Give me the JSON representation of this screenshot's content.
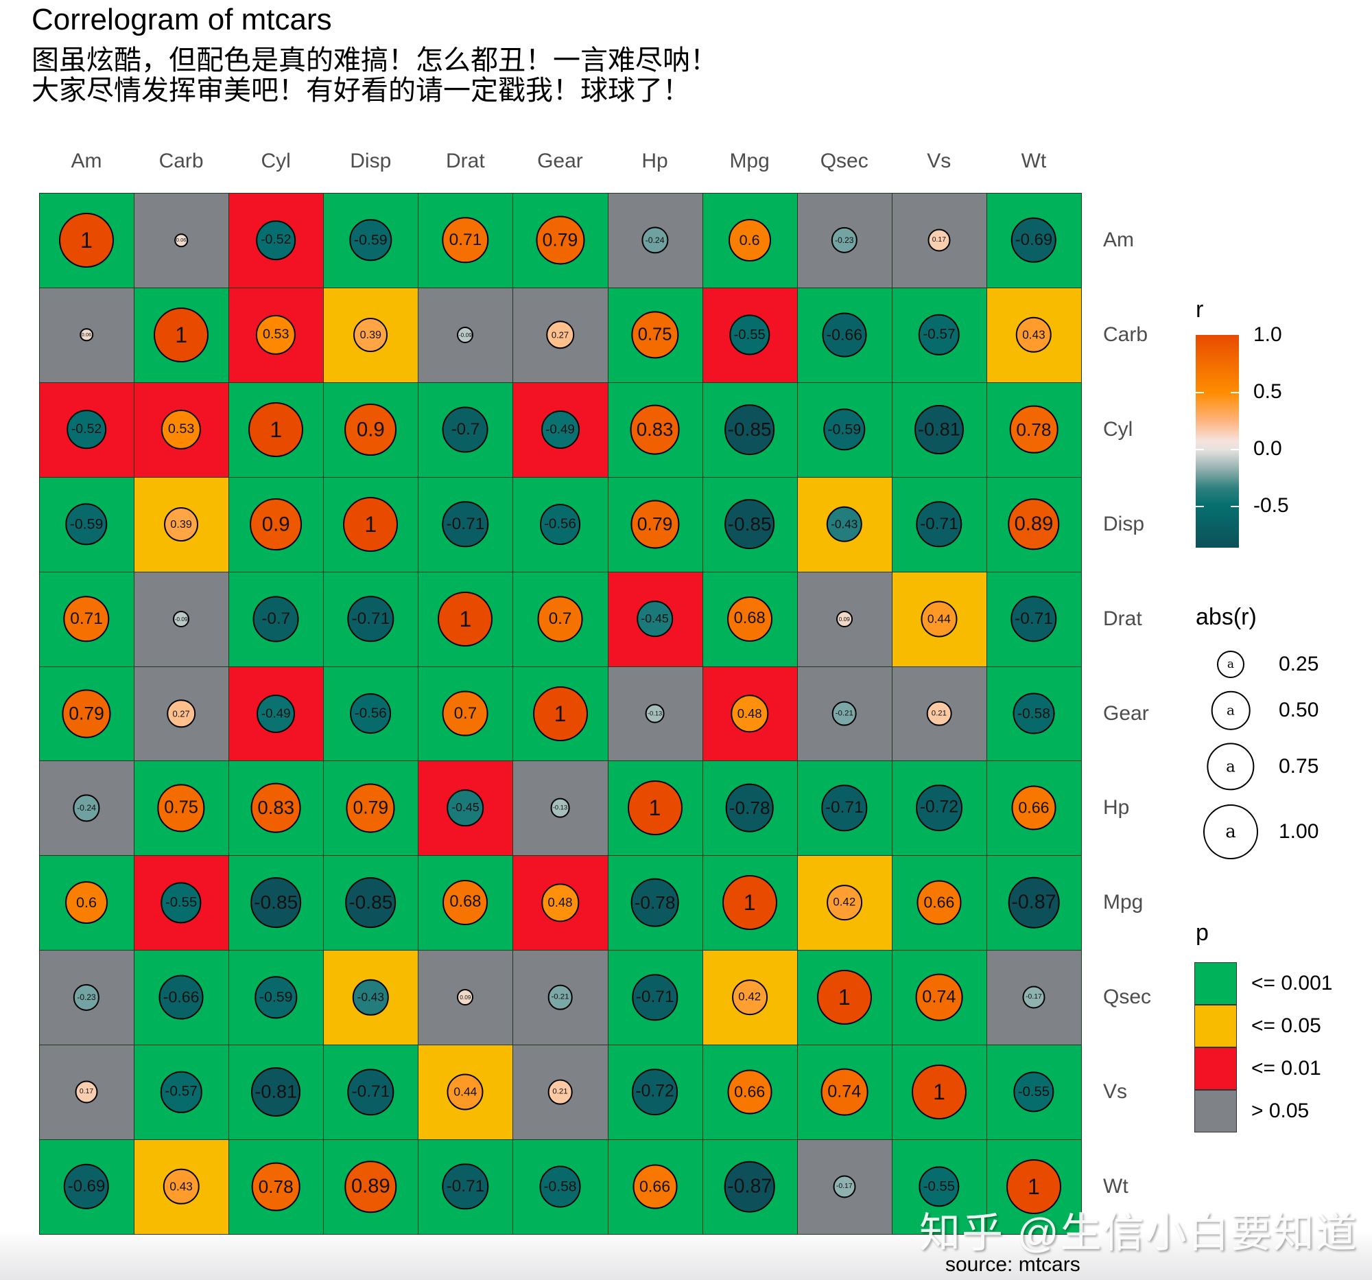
{
  "title": "Correlogram of mtcars",
  "subtitle": [
    "图虽炫酷，但配色是真的难搞！怎么都丑！一言难尽呐！",
    "大家尽情发挥审美吧！有好看的请一定戳我！球球了！"
  ],
  "caption": "source: mtcars",
  "watermark": "知乎 @生信小白要知道",
  "colors": {
    "p_001": "#00b25a",
    "p_05": "#f8bb00",
    "p_01": "#f21224",
    "p_ns": "#7f8286",
    "r_neg": "#0d5059",
    "r_neg_half": "#06706f",
    "r_zero": "#ebe3de",
    "r_pos_half": "#ff8c00",
    "r_pos": "#e84a00"
  },
  "legends": {
    "r": {
      "title": "r",
      "ticks": [
        {
          "label": "1.0",
          "value": 1.0
        },
        {
          "label": "0.5",
          "value": 0.5
        },
        {
          "label": "0.0",
          "value": 0.0
        },
        {
          "label": "-0.5",
          "value": -0.5
        }
      ]
    },
    "abs_r": {
      "title": "abs(r)",
      "glyph": "a",
      "items": [
        {
          "label": "0.25",
          "value": 0.25
        },
        {
          "label": "0.50",
          "value": 0.5
        },
        {
          "label": "0.75",
          "value": 0.75
        },
        {
          "label": "1.00",
          "value": 1.0
        }
      ]
    },
    "p": {
      "title": "p",
      "items": [
        {
          "label": "<= 0.001",
          "key": "p_001"
        },
        {
          "label": "<= 0.05",
          "key": "p_05"
        },
        {
          "label": "<= 0.01",
          "key": "p_01"
        },
        {
          "label": "> 0.05",
          "key": "p_ns"
        }
      ]
    }
  },
  "chart_data": {
    "type": "heatmap",
    "title": "Correlogram of mtcars",
    "subtitle": "图虽炫酷，但配色是真的难搞！怎么都丑！一言难尽呐！ 大家尽情发挥审美吧！有好看的请一定戳我！球球了！",
    "caption": "source: mtcars",
    "xlabel": "",
    "ylabel": "",
    "variables": [
      "Am",
      "Carb",
      "Cyl",
      "Disp",
      "Drat",
      "Gear",
      "Hp",
      "Mpg",
      "Qsec",
      "Vs",
      "Wt"
    ],
    "value_label": "r (Pearson correlation; circle fill color and size = abs(r))",
    "tile_label": "p (significance category)",
    "r": [
      [
        1,
        0.06,
        -0.52,
        -0.59,
        0.71,
        0.79,
        -0.24,
        0.6,
        -0.23,
        0.17,
        -0.69
      ],
      [
        0.06,
        1,
        0.53,
        0.39,
        -0.09,
        0.27,
        0.75,
        -0.55,
        -0.66,
        -0.57,
        0.43
      ],
      [
        -0.52,
        0.53,
        1,
        0.9,
        -0.7,
        -0.49,
        0.83,
        -0.85,
        -0.59,
        -0.81,
        0.78
      ],
      [
        -0.59,
        0.39,
        0.9,
        1,
        -0.71,
        -0.56,
        0.79,
        -0.85,
        -0.43,
        -0.71,
        0.89
      ],
      [
        0.71,
        -0.09,
        -0.7,
        -0.71,
        1,
        0.7,
        -0.45,
        0.68,
        0.09,
        0.44,
        -0.71
      ],
      [
        0.79,
        0.27,
        -0.49,
        -0.56,
        0.7,
        1,
        -0.13,
        0.48,
        -0.21,
        0.21,
        -0.58
      ],
      [
        -0.24,
        0.75,
        0.83,
        0.79,
        -0.45,
        -0.13,
        1,
        -0.78,
        -0.71,
        -0.72,
        0.66
      ],
      [
        0.6,
        -0.55,
        -0.85,
        -0.85,
        0.68,
        0.48,
        -0.78,
        1,
        0.42,
        0.66,
        -0.87
      ],
      [
        -0.23,
        -0.66,
        -0.59,
        -0.43,
        0.09,
        -0.21,
        -0.71,
        0.42,
        1,
        0.74,
        -0.17
      ],
      [
        0.17,
        -0.57,
        -0.81,
        -0.71,
        0.44,
        0.21,
        -0.72,
        0.66,
        0.74,
        1,
        -0.55
      ],
      [
        -0.69,
        0.43,
        0.78,
        0.89,
        -0.71,
        -0.58,
        0.66,
        -0.87,
        -0.17,
        -0.55,
        1
      ]
    ],
    "p_category": [
      [
        "p_001",
        "p_ns",
        "p_01",
        "p_001",
        "p_001",
        "p_001",
        "p_ns",
        "p_001",
        "p_ns",
        "p_ns",
        "p_001"
      ],
      [
        "p_ns",
        "p_001",
        "p_01",
        "p_05",
        "p_ns",
        "p_ns",
        "p_001",
        "p_01",
        "p_001",
        "p_001",
        "p_05"
      ],
      [
        "p_01",
        "p_01",
        "p_001",
        "p_001",
        "p_001",
        "p_01",
        "p_001",
        "p_001",
        "p_001",
        "p_001",
        "p_001"
      ],
      [
        "p_001",
        "p_05",
        "p_001",
        "p_001",
        "p_001",
        "p_001",
        "p_001",
        "p_001",
        "p_05",
        "p_001",
        "p_001"
      ],
      [
        "p_001",
        "p_ns",
        "p_001",
        "p_001",
        "p_001",
        "p_001",
        "p_01",
        "p_001",
        "p_ns",
        "p_05",
        "p_001"
      ],
      [
        "p_001",
        "p_ns",
        "p_01",
        "p_001",
        "p_001",
        "p_001",
        "p_ns",
        "p_01",
        "p_ns",
        "p_ns",
        "p_001"
      ],
      [
        "p_ns",
        "p_001",
        "p_001",
        "p_001",
        "p_01",
        "p_ns",
        "p_001",
        "p_001",
        "p_001",
        "p_001",
        "p_001"
      ],
      [
        "p_001",
        "p_01",
        "p_001",
        "p_001",
        "p_001",
        "p_01",
        "p_001",
        "p_001",
        "p_05",
        "p_001",
        "p_001"
      ],
      [
        "p_ns",
        "p_001",
        "p_001",
        "p_05",
        "p_ns",
        "p_ns",
        "p_001",
        "p_05",
        "p_001",
        "p_001",
        "p_ns"
      ],
      [
        "p_ns",
        "p_001",
        "p_001",
        "p_001",
        "p_05",
        "p_ns",
        "p_001",
        "p_001",
        "p_001",
        "p_001",
        "p_001"
      ],
      [
        "p_001",
        "p_05",
        "p_001",
        "p_001",
        "p_001",
        "p_001",
        "p_001",
        "p_001",
        "p_ns",
        "p_001",
        "p_001"
      ]
    ],
    "p_legend": {
      "p_001": "<= 0.001",
      "p_05": "<= 0.05",
      "p_01": "<= 0.01",
      "p_ns": "> 0.05"
    },
    "color_scale": {
      "min": -0.87,
      "max": 1.0,
      "ticks": [
        1.0,
        0.5,
        0.0,
        -0.5
      ]
    },
    "size_scale": {
      "ticks": [
        0.25,
        0.5,
        0.75,
        1.0
      ]
    },
    "legend_position": "right",
    "grid": false
  }
}
